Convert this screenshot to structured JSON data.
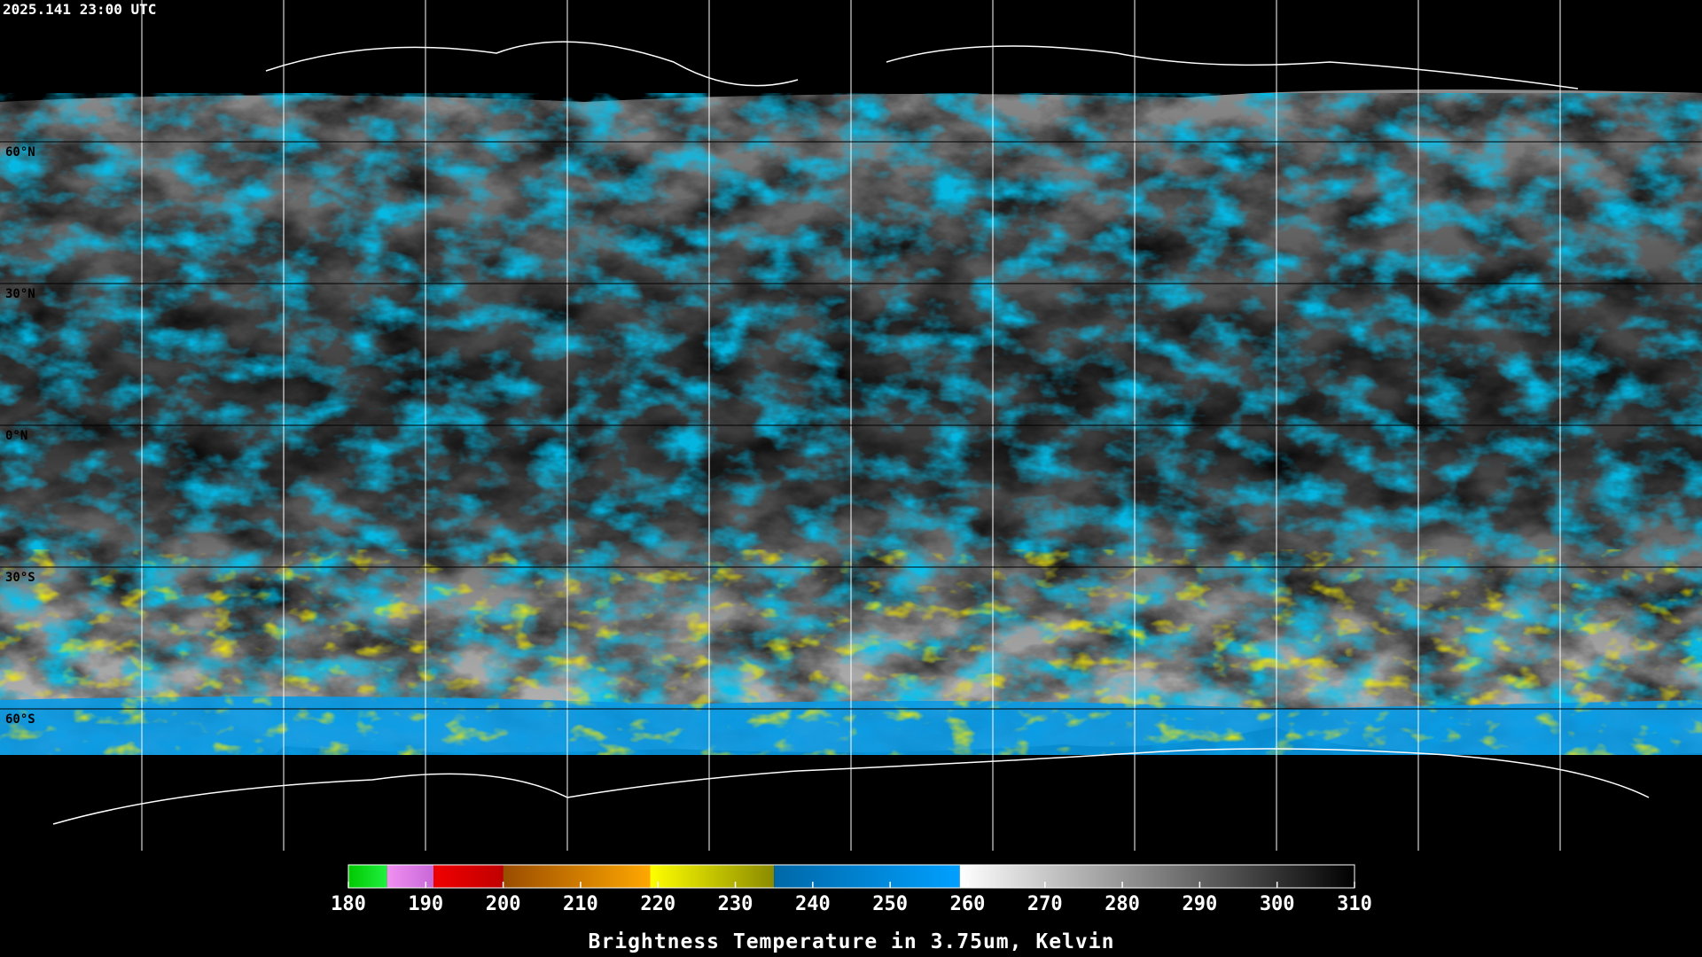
{
  "timestamp": "2025.141 23:00 UTC",
  "latitude_labels": [
    "60°N",
    "30°N",
    "0°N",
    "30°S",
    "60°S"
  ],
  "colorbar": {
    "title": "Brightness Temperature in 3.75um, Kelvin",
    "range": [
      180,
      310
    ],
    "ticks": [
      180,
      190,
      200,
      210,
      220,
      230,
      240,
      250,
      260,
      270,
      280,
      290,
      300,
      310
    ],
    "segments": [
      {
        "from": 180,
        "to": 185,
        "colors": [
          "#00c800",
          "#20f040"
        ]
      },
      {
        "from": 185,
        "to": 191,
        "colors": [
          "#f090f0",
          "#c868d8"
        ]
      },
      {
        "from": 191,
        "to": 200,
        "colors": [
          "#f00000",
          "#c00000"
        ]
      },
      {
        "from": 200,
        "to": 219,
        "colors": [
          "#9a4c00",
          "#ffa800"
        ]
      },
      {
        "from": 219,
        "to": 235,
        "colors": [
          "#ffff00",
          "#8a8a00"
        ]
      },
      {
        "from": 235,
        "to": 259,
        "colors": [
          "#0068a8",
          "#00a0ff"
        ]
      },
      {
        "from": 259,
        "to": 310,
        "colors": [
          "#ffffff",
          "#000000"
        ]
      }
    ]
  }
}
